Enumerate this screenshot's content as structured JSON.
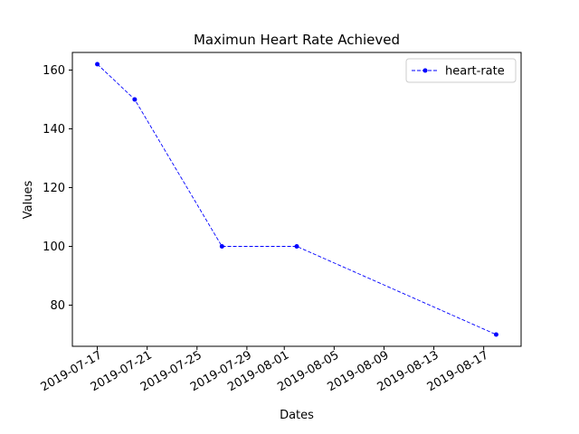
{
  "chart_data": {
    "type": "line",
    "title": "Maximun Heart Rate Achieved",
    "xlabel": "Dates",
    "ylabel": "Values",
    "x_is_date": true,
    "x": [
      "2019-07-17",
      "2019-07-20",
      "2019-07-27",
      "2019-08-02",
      "2019-08-18"
    ],
    "series": [
      {
        "name": "heart-rate",
        "values": [
          162,
          150,
          100,
          100,
          70
        ],
        "color": "#0000ff",
        "line_style": "dashed",
        "marker": "circle"
      }
    ],
    "xlim": [
      "2019-07-15",
      "2019-08-20"
    ],
    "ylim": [
      66,
      166
    ],
    "x_ticks": [
      "2019-07-17",
      "2019-07-21",
      "2019-07-25",
      "2019-07-29",
      "2019-08-01",
      "2019-08-05",
      "2019-08-09",
      "2019-08-13",
      "2019-08-17"
    ],
    "y_ticks": [
      80,
      100,
      120,
      140,
      160
    ],
    "legend_position": "top-right",
    "grid": false
  }
}
